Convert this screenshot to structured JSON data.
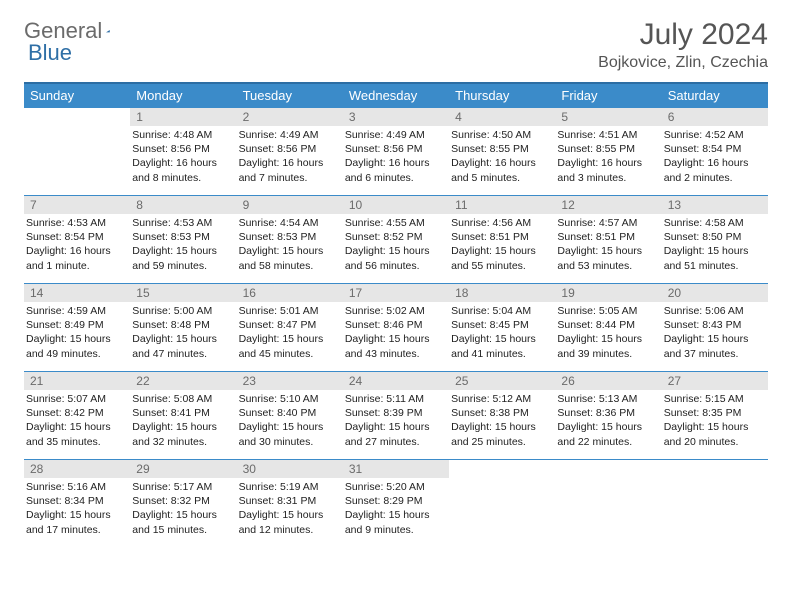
{
  "brand": {
    "word1": "General",
    "word2": "Blue"
  },
  "title": "July 2024",
  "location": "Bojkovice, Zlin, Czechia",
  "colors": {
    "header_bg": "#3b8bc9",
    "header_border": "#2c6da3",
    "daynum_bg": "#e6e6e6",
    "text": "#222222",
    "logo_grey": "#6b6b6b",
    "logo_blue": "#2f6fa6"
  },
  "dayNames": [
    "Sunday",
    "Monday",
    "Tuesday",
    "Wednesday",
    "Thursday",
    "Friday",
    "Saturday"
  ],
  "firstWeekdayIndex": 1,
  "daysInMonth": 31,
  "days": {
    "1": {
      "sunrise": "4:48 AM",
      "sunset": "8:56 PM",
      "daylight": "16 hours and 8 minutes."
    },
    "2": {
      "sunrise": "4:49 AM",
      "sunset": "8:56 PM",
      "daylight": "16 hours and 7 minutes."
    },
    "3": {
      "sunrise": "4:49 AM",
      "sunset": "8:56 PM",
      "daylight": "16 hours and 6 minutes."
    },
    "4": {
      "sunrise": "4:50 AM",
      "sunset": "8:55 PM",
      "daylight": "16 hours and 5 minutes."
    },
    "5": {
      "sunrise": "4:51 AM",
      "sunset": "8:55 PM",
      "daylight": "16 hours and 3 minutes."
    },
    "6": {
      "sunrise": "4:52 AM",
      "sunset": "8:54 PM",
      "daylight": "16 hours and 2 minutes."
    },
    "7": {
      "sunrise": "4:53 AM",
      "sunset": "8:54 PM",
      "daylight": "16 hours and 1 minute."
    },
    "8": {
      "sunrise": "4:53 AM",
      "sunset": "8:53 PM",
      "daylight": "15 hours and 59 minutes."
    },
    "9": {
      "sunrise": "4:54 AM",
      "sunset": "8:53 PM",
      "daylight": "15 hours and 58 minutes."
    },
    "10": {
      "sunrise": "4:55 AM",
      "sunset": "8:52 PM",
      "daylight": "15 hours and 56 minutes."
    },
    "11": {
      "sunrise": "4:56 AM",
      "sunset": "8:51 PM",
      "daylight": "15 hours and 55 minutes."
    },
    "12": {
      "sunrise": "4:57 AM",
      "sunset": "8:51 PM",
      "daylight": "15 hours and 53 minutes."
    },
    "13": {
      "sunrise": "4:58 AM",
      "sunset": "8:50 PM",
      "daylight": "15 hours and 51 minutes."
    },
    "14": {
      "sunrise": "4:59 AM",
      "sunset": "8:49 PM",
      "daylight": "15 hours and 49 minutes."
    },
    "15": {
      "sunrise": "5:00 AM",
      "sunset": "8:48 PM",
      "daylight": "15 hours and 47 minutes."
    },
    "16": {
      "sunrise": "5:01 AM",
      "sunset": "8:47 PM",
      "daylight": "15 hours and 45 minutes."
    },
    "17": {
      "sunrise": "5:02 AM",
      "sunset": "8:46 PM",
      "daylight": "15 hours and 43 minutes."
    },
    "18": {
      "sunrise": "5:04 AM",
      "sunset": "8:45 PM",
      "daylight": "15 hours and 41 minutes."
    },
    "19": {
      "sunrise": "5:05 AM",
      "sunset": "8:44 PM",
      "daylight": "15 hours and 39 minutes."
    },
    "20": {
      "sunrise": "5:06 AM",
      "sunset": "8:43 PM",
      "daylight": "15 hours and 37 minutes."
    },
    "21": {
      "sunrise": "5:07 AM",
      "sunset": "8:42 PM",
      "daylight": "15 hours and 35 minutes."
    },
    "22": {
      "sunrise": "5:08 AM",
      "sunset": "8:41 PM",
      "daylight": "15 hours and 32 minutes."
    },
    "23": {
      "sunrise": "5:10 AM",
      "sunset": "8:40 PM",
      "daylight": "15 hours and 30 minutes."
    },
    "24": {
      "sunrise": "5:11 AM",
      "sunset": "8:39 PM",
      "daylight": "15 hours and 27 minutes."
    },
    "25": {
      "sunrise": "5:12 AM",
      "sunset": "8:38 PM",
      "daylight": "15 hours and 25 minutes."
    },
    "26": {
      "sunrise": "5:13 AM",
      "sunset": "8:36 PM",
      "daylight": "15 hours and 22 minutes."
    },
    "27": {
      "sunrise": "5:15 AM",
      "sunset": "8:35 PM",
      "daylight": "15 hours and 20 minutes."
    },
    "28": {
      "sunrise": "5:16 AM",
      "sunset": "8:34 PM",
      "daylight": "15 hours and 17 minutes."
    },
    "29": {
      "sunrise": "5:17 AM",
      "sunset": "8:32 PM",
      "daylight": "15 hours and 15 minutes."
    },
    "30": {
      "sunrise": "5:19 AM",
      "sunset": "8:31 PM",
      "daylight": "15 hours and 12 minutes."
    },
    "31": {
      "sunrise": "5:20 AM",
      "sunset": "8:29 PM",
      "daylight": "15 hours and 9 minutes."
    }
  },
  "labels": {
    "sunrise": "Sunrise: ",
    "sunset": "Sunset: ",
    "daylight": "Daylight: "
  }
}
